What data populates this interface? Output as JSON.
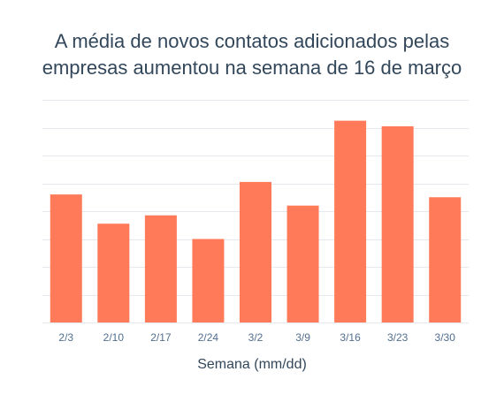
{
  "chart_data": {
    "type": "bar",
    "title_lines": [
      "A média de novos contatos adicionados pelas",
      "empresas aumentou na semana de 16 de março"
    ],
    "xlabel": "Semana (mm/dd)",
    "ylabel": "",
    "categories": [
      "2/3",
      "2/10",
      "2/17",
      "2/24",
      "3/2",
      "3/9",
      "3/16",
      "3/23",
      "3/30"
    ],
    "values": [
      4.6,
      3.55,
      3.85,
      3.0,
      5.05,
      4.2,
      7.25,
      7.05,
      4.5
    ],
    "ylim": [
      0,
      8
    ],
    "grid": true,
    "y_tick_labels_shown": false,
    "bar_color": "#ff7a59",
    "grid_color": "#e5e8ec",
    "text_color": "#33475b",
    "tick_color": "#516f90"
  }
}
